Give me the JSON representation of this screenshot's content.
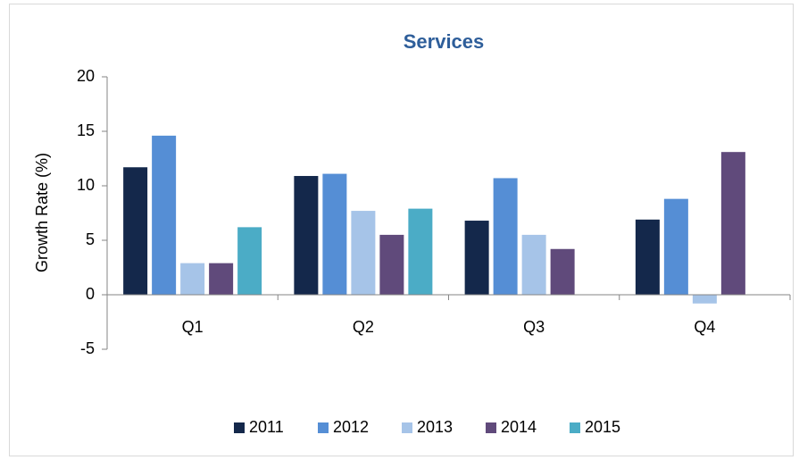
{
  "chart_data": {
    "type": "bar",
    "title": "Services",
    "y_label": "Growth Rate (%)",
    "categories": [
      "Q1",
      "Q2",
      "Q3",
      "Q4"
    ],
    "series": [
      {
        "name": "2011",
        "color": "#14284b",
        "values": [
          11.7,
          10.9,
          6.8,
          6.9
        ]
      },
      {
        "name": "2012",
        "color": "#558ed5",
        "values": [
          14.6,
          11.1,
          10.7,
          8.8
        ]
      },
      {
        "name": "2013",
        "color": "#a6c4e8",
        "values": [
          2.9,
          7.7,
          5.5,
          -0.8
        ]
      },
      {
        "name": "2014",
        "color": "#604a7b",
        "values": [
          2.9,
          5.5,
          4.2,
          13.1
        ]
      },
      {
        "name": "2015",
        "color": "#4bacc6",
        "values": [
          6.2,
          7.9,
          null,
          null
        ]
      }
    ],
    "ylim": [
      -5,
      20
    ],
    "yticks": [
      -5,
      0,
      5,
      10,
      15,
      20
    ],
    "grid": false,
    "legend": "bottom"
  }
}
